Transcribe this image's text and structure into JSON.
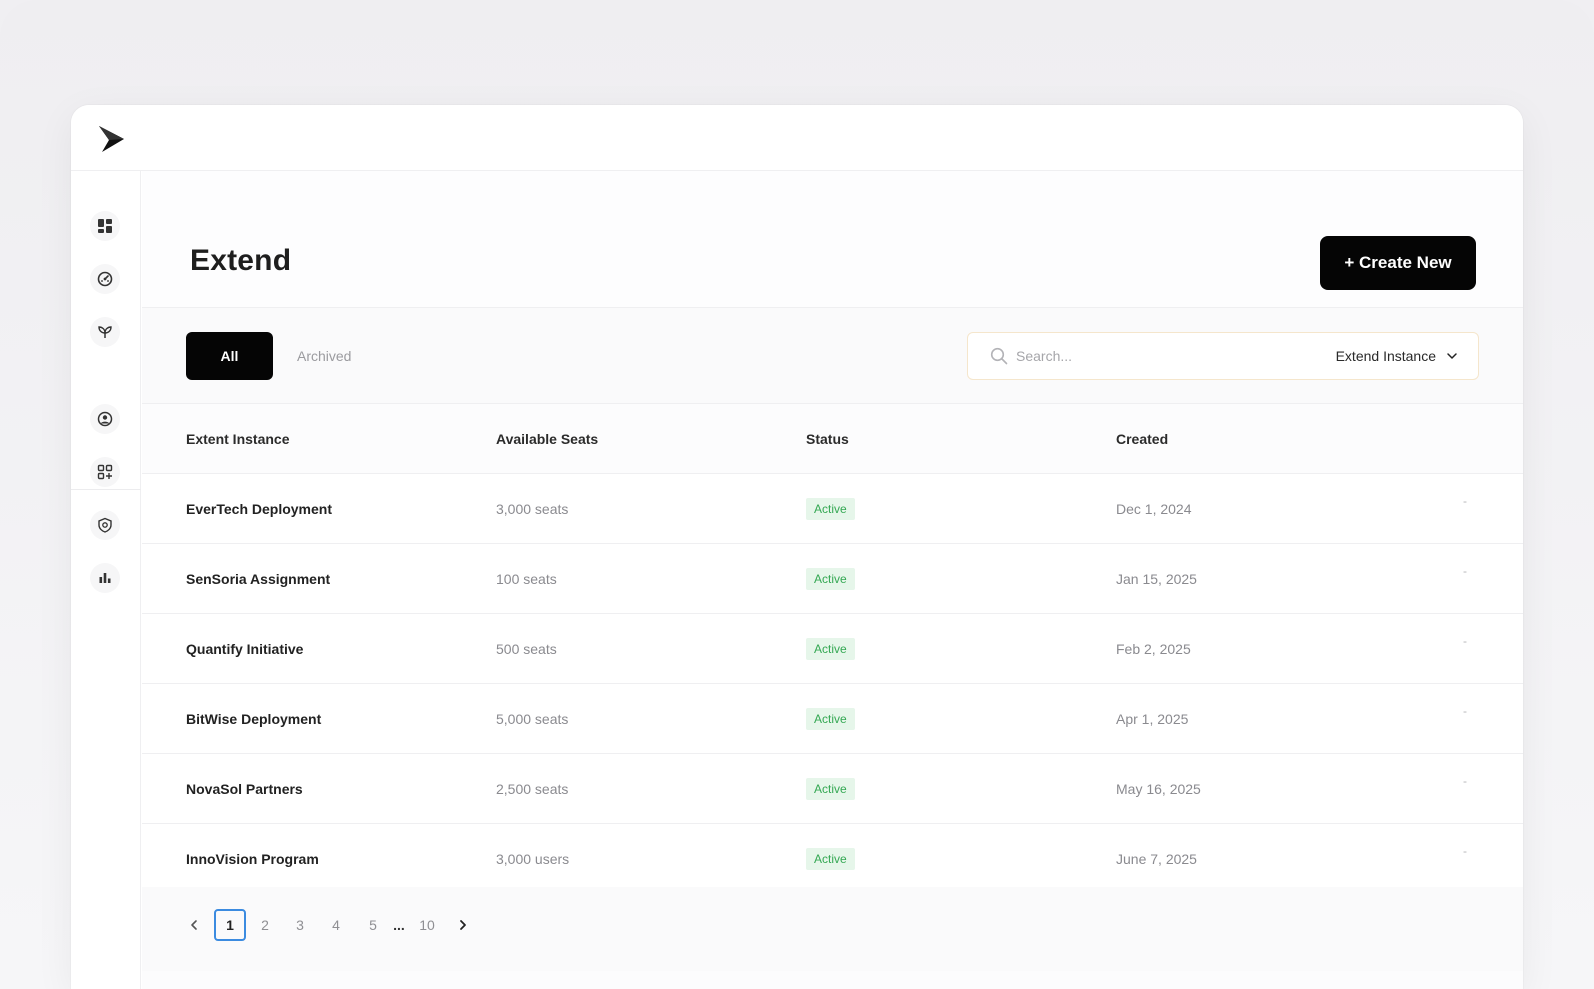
{
  "page": {
    "title": "Extend",
    "create_label": "+ Create New"
  },
  "sidebar": {
    "items": [
      {
        "icon": "dashboard-icon"
      },
      {
        "icon": "gauge-icon"
      },
      {
        "icon": "sprout-icon"
      },
      {
        "icon": "user-circle-icon"
      },
      {
        "icon": "apps-add-icon"
      },
      {
        "icon": "shield-icon"
      },
      {
        "icon": "bar-chart-icon"
      }
    ]
  },
  "tabs": {
    "all": "All",
    "archived": "Archived"
  },
  "search": {
    "placeholder": "Search...",
    "filter_value": "Extend Instance"
  },
  "table": {
    "columns": [
      "Extent Instance",
      "Available Seats",
      "Status",
      "Created"
    ],
    "rows": [
      {
        "name": "EverTech Deployment",
        "seats": "3,000 seats",
        "status": "Active",
        "created": "Dec 1, 2024",
        "extra": "-"
      },
      {
        "name": "SenSoria Assignment",
        "seats": "100 seats",
        "status": "Active",
        "created": "Jan 15, 2025",
        "extra": "-"
      },
      {
        "name": "Quantify Initiative",
        "seats": "500 seats",
        "status": "Active",
        "created": "Feb 2, 2025",
        "extra": "-"
      },
      {
        "name": "BitWise Deployment",
        "seats": "5,000 seats",
        "status": "Active",
        "created": "Apr 1, 2025",
        "extra": "-"
      },
      {
        "name": "NovaSol Partners",
        "seats": "2,500 seats",
        "status": "Active",
        "created": "May 16, 2025",
        "extra": "-"
      },
      {
        "name": "InnoVision Program",
        "seats": "3,000 users",
        "status": "Active",
        "created": "June 7, 2025",
        "extra": "-"
      }
    ]
  },
  "pagination": {
    "pages": [
      "1",
      "2",
      "3",
      "4",
      "5",
      "...",
      "10"
    ],
    "current": "1"
  },
  "colors": {
    "accent": "#050505",
    "status_active_bg": "#e6f6ea",
    "status_active_text": "#34a853",
    "page_active_border": "#3b8be0"
  }
}
